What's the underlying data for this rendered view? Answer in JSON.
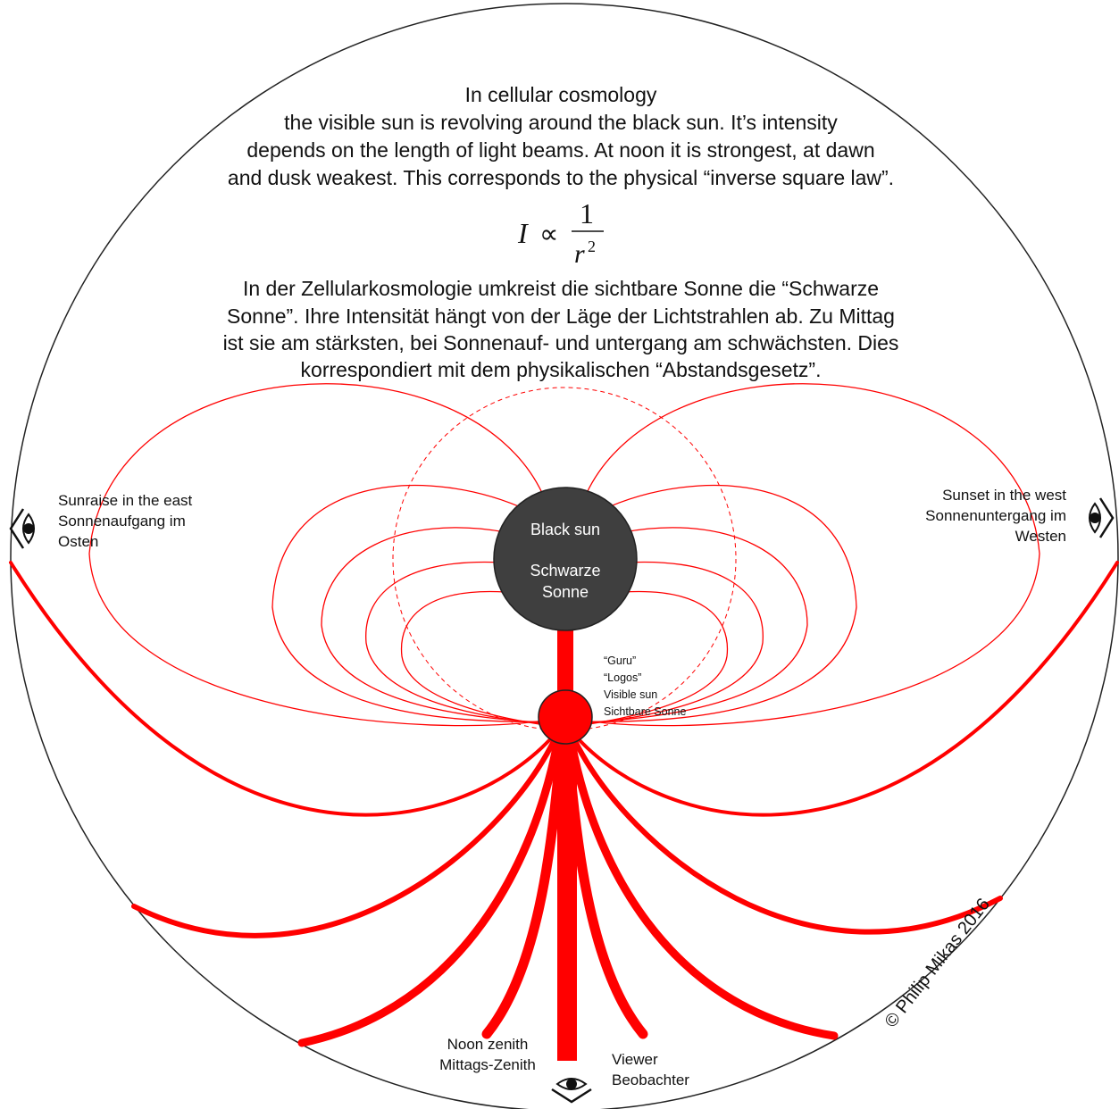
{
  "intro_en": [
    "In cellular cosmology",
    "the visible sun is revolving around the black sun. It’s intensity",
    "depends on the length of light beams. At noon it is strongest, at dawn",
    "and dusk weakest. This corresponds to the physical “inverse square law”."
  ],
  "formula": {
    "lhs": "I",
    "relation": "∝",
    "numerator": "1",
    "denominator": "r",
    "exponent": "2"
  },
  "intro_de": [
    "In der Zellularkosmologie umkreist die sichtbare Sonne die “Schwarze",
    "Sonne”. Ihre Intensität hängt von der Läge der Lichtstrahlen ab. Zu Mittag",
    "ist sie am stärksten, bei Sonnenauf- und untergang am schwächsten. Dies",
    "korrespondiert mit dem physikalischen “Abstandsgesetz”."
  ],
  "black_sun": {
    "line1": "Black sun",
    "line2": "Schwarze",
    "line3": "Sonne",
    "color": "#3f3f3f"
  },
  "visible_sun": {
    "labels": [
      "“Guru”",
      "“Logos”",
      "Visible sun",
      "Sichtbare Sonne"
    ],
    "color": "#ff0000"
  },
  "east": [
    "Sunraise in the east",
    "Sonnenaufgang im",
    "Osten"
  ],
  "west": [
    "Sunset in the west",
    "Sonnenuntergang im",
    "Westen"
  ],
  "noon": [
    "Noon zenith",
    "Mittags-Zenith"
  ],
  "viewer": [
    "Viewer",
    "Beobachter"
  ],
  "copyright": "© Philip Mikas 2016",
  "colors": {
    "beam": "#ff0000",
    "outline": "#222222"
  }
}
